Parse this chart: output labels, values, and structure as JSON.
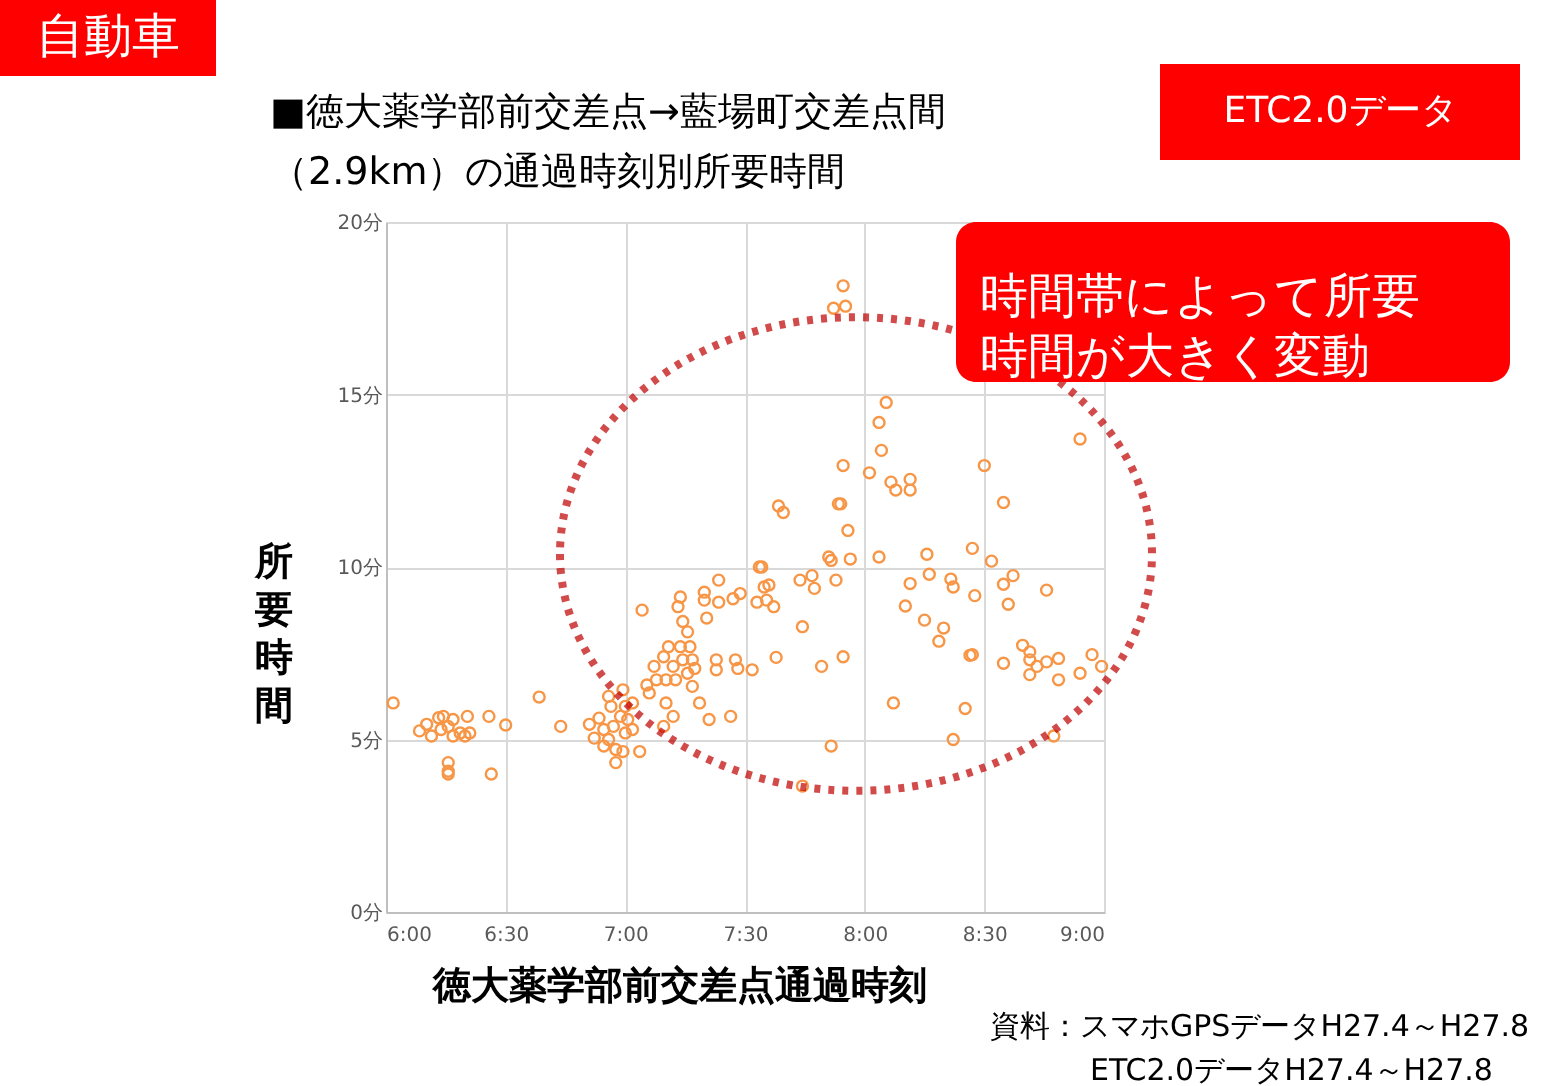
{
  "chart_data": {
    "type": "scatter",
    "title": "■徳大薬学部前交差点→藍場町交差点間（2.9km）の通過時刻別所要時間",
    "xlabel": "徳大薬学部前交差点通過時刻",
    "ylabel": "所要時間",
    "annotations": [
      "自動車",
      "ETC2.0データ",
      "時間帯によって所要時間が大きく変動",
      "資料：スマホGPSデータH27.4～H27.8\nETC2.0データH27.4～H27.8"
    ],
    "xlim": [
      6,
      9
    ],
    "xticks": [
      {
        "value": 6,
        "label": "6:00"
      },
      {
        "value": 6.5,
        "label": "6:30"
      },
      {
        "value": 7,
        "label": "7:00"
      },
      {
        "value": 7.5,
        "label": "7:30"
      },
      {
        "value": 8,
        "label": "8:00"
      },
      {
        "value": 8.5,
        "label": "8:30"
      },
      {
        "value": 9,
        "label": "9:00"
      }
    ],
    "ylim": [
      0,
      20
    ],
    "yticks": [
      {
        "value": 0,
        "label": "0分"
      },
      {
        "value": 5,
        "label": "5分"
      },
      {
        "value": 10,
        "label": "10分"
      },
      {
        "value": 15,
        "label": "15分"
      },
      {
        "value": 20,
        "label": "20分"
      }
    ],
    "grid": true,
    "marker": "circle",
    "series": [
      {
        "color": "#f79646",
        "x": [
          6.03,
          6.14,
          6.17,
          6.19,
          6.22,
          6.24,
          6.23,
          6.26,
          6.28,
          6.28,
          6.31,
          6.33,
          6.34,
          6.35,
          6.26,
          6.26,
          6.26,
          6.43,
          6.44,
          6.5,
          6.64,
          6.73,
          6.85,
          6.87,
          6.89,
          6.91,
          6.93,
          6.94,
          6.95,
          6.96,
          6.96,
          6.98,
          6.99,
          7.0,
          7.0,
          7.01,
          7.03,
          7.03,
          6.99,
          7.06,
          6.91,
          6.93,
          7.07,
          7.09,
          7.1,
          7.12,
          7.13,
          7.16,
          7.17,
          7.18,
          7.2,
          7.21,
          7.22,
          7.23,
          7.23,
          7.24,
          7.24,
          7.26,
          7.26,
          7.27,
          7.28,
          7.28,
          7.29,
          7.31,
          7.33,
          7.33,
          7.34,
          7.35,
          7.38,
          7.38,
          7.39,
          7.39,
          7.44,
          7.45,
          7.46,
          7.47,
          7.48,
          7.53,
          7.17,
          7.2,
          7.16,
          7.56,
          7.55,
          7.57,
          7.58,
          7.6,
          7.59,
          7.62,
          7.64,
          7.66,
          7.63,
          7.73,
          7.78,
          7.79,
          7.74,
          7.82,
          7.85,
          7.86,
          7.88,
          7.89,
          7.9,
          7.91,
          7.93,
          7.94,
          7.91,
          7.86,
          7.74,
          7.87,
          7.92,
          7.91,
          8.02,
          8.06,
          8.09,
          8.07,
          8.06,
          8.11,
          8.13,
          8.19,
          8.19,
          8.12,
          8.17,
          8.19,
          8.26,
          8.27,
          8.25,
          8.31,
          8.33,
          8.36,
          8.37,
          8.37,
          8.42,
          8.44,
          8.45,
          8.45,
          8.46,
          8.5,
          8.53,
          8.58,
          8.58,
          8.62,
          8.6,
          8.58,
          8.66,
          8.69,
          8.69,
          8.69,
          8.72,
          8.76,
          8.76,
          8.81,
          8.81,
          8.79,
          8.9,
          8.9,
          8.95,
          8.99
        ],
        "values": [
          6.06,
          5.25,
          5.44,
          5.1,
          5.63,
          5.67,
          5.29,
          5.38,
          5.58,
          5.1,
          5.19,
          5.1,
          5.67,
          5.19,
          4.33,
          4.08,
          4.0,
          5.67,
          4.0,
          5.42,
          6.23,
          5.38,
          5.44,
          5.04,
          5.62,
          4.81,
          6.25,
          5.96,
          5.38,
          4.33,
          4.71,
          5.67,
          6.44,
          5.19,
          5.96,
          5.58,
          6.06,
          5.29,
          4.65,
          4.65,
          5.29,
          5.0,
          8.75,
          6.58,
          6.35,
          7.12,
          6.73,
          7.4,
          6.73,
          7.69,
          7.12,
          6.73,
          8.85,
          9.13,
          7.69,
          8.42,
          7.31,
          6.92,
          8.12,
          7.69,
          7.31,
          6.54,
          7.06,
          6.06,
          9.04,
          9.27,
          8.52,
          5.58,
          7.31,
          7.02,
          9.62,
          8.98,
          5.67,
          9.08,
          7.31,
          7.06,
          9.23,
          7.02,
          6.06,
          5.67,
          5.38,
          10.0,
          8.98,
          10.0,
          9.42,
          9.48,
          9.04,
          8.85,
          11.77,
          11.58,
          7.38,
          9.62,
          9.75,
          9.38,
          8.27,
          7.12,
          10.29,
          10.19,
          9.62,
          11.83,
          11.83,
          12.94,
          11.06,
          10.23,
          7.4,
          4.81,
          3.65,
          17.5,
          17.56,
          18.15,
          12.73,
          14.19,
          14.77,
          13.38,
          10.29,
          12.46,
          12.23,
          12.54,
          12.23,
          6.06,
          8.87,
          9.52,
          10.37,
          9.79,
          8.46,
          7.85,
          8.23,
          9.65,
          9.42,
          5.0,
          5.9,
          7.44,
          7.46,
          10.54,
          9.17,
          12.94,
          10.17,
          11.87,
          9.5,
          9.75,
          8.92,
          7.21,
          7.73,
          7.31,
          7.54,
          6.88,
          7.12,
          9.33,
          7.25,
          6.73,
          7.35,
          5.1,
          6.92,
          13.71,
          7.46,
          7.12
        ]
      }
    ]
  }
}
